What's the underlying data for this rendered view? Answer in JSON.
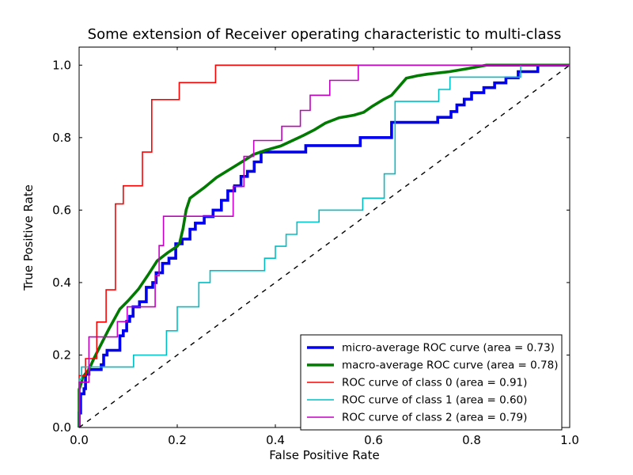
{
  "figure": {
    "title": "Some extension of Receiver operating characteristic to multi-class",
    "xlabel": "False Positive Rate",
    "ylabel": "True Positive Rate",
    "background": "#ffffff",
    "frame_color": "#000000"
  },
  "chart_data": {
    "type": "line",
    "title": "Some extension of Receiver operating characteristic to multi-class",
    "xlabel": "False Positive Rate",
    "ylabel": "True Positive Rate",
    "xlim": [
      0.0,
      1.0
    ],
    "ylim": [
      0.0,
      1.05
    ],
    "xtick_labels": [
      "0.0",
      "0.2",
      "0.4",
      "0.6",
      "0.8",
      "1.0"
    ],
    "xtick_values": [
      0.0,
      0.2,
      0.4,
      0.6,
      0.8,
      1.0
    ],
    "ytick_labels": [
      "0.0",
      "0.2",
      "0.4",
      "0.6",
      "0.8",
      "1.0"
    ],
    "ytick_values": [
      0.0,
      0.2,
      0.4,
      0.6,
      0.8,
      1.0
    ],
    "grid": false,
    "legend_position": "lower right",
    "series": [
      {
        "name": "micro-average ROC curve (area = 0.73)",
        "auc": 0.73,
        "color": "#0000ee",
        "width": 3.6,
        "style": "solid",
        "in_legend": true,
        "points": [
          [
            0,
            0
          ],
          [
            0,
            0.04
          ],
          [
            0.003,
            0.04
          ],
          [
            0.003,
            0.093
          ],
          [
            0.01,
            0.093
          ],
          [
            0.01,
            0.107
          ],
          [
            0.013,
            0.107
          ],
          [
            0.013,
            0.147
          ],
          [
            0.02,
            0.147
          ],
          [
            0.02,
            0.16
          ],
          [
            0.045,
            0.16
          ],
          [
            0.045,
            0.173
          ],
          [
            0.05,
            0.173
          ],
          [
            0.05,
            0.2
          ],
          [
            0.057,
            0.2
          ],
          [
            0.057,
            0.213
          ],
          [
            0.083,
            0.213
          ],
          [
            0.083,
            0.253
          ],
          [
            0.09,
            0.253
          ],
          [
            0.09,
            0.267
          ],
          [
            0.097,
            0.267
          ],
          [
            0.097,
            0.293
          ],
          [
            0.103,
            0.293
          ],
          [
            0.103,
            0.307
          ],
          [
            0.11,
            0.307
          ],
          [
            0.11,
            0.333
          ],
          [
            0.123,
            0.333
          ],
          [
            0.123,
            0.347
          ],
          [
            0.137,
            0.347
          ],
          [
            0.137,
            0.387
          ],
          [
            0.15,
            0.387
          ],
          [
            0.15,
            0.4
          ],
          [
            0.157,
            0.4
          ],
          [
            0.157,
            0.427
          ],
          [
            0.17,
            0.427
          ],
          [
            0.17,
            0.453
          ],
          [
            0.183,
            0.453
          ],
          [
            0.183,
            0.467
          ],
          [
            0.197,
            0.467
          ],
          [
            0.197,
            0.507
          ],
          [
            0.21,
            0.507
          ],
          [
            0.21,
            0.52
          ],
          [
            0.226,
            0.52
          ],
          [
            0.226,
            0.547
          ],
          [
            0.237,
            0.547
          ],
          [
            0.237,
            0.564
          ],
          [
            0.255,
            0.564
          ],
          [
            0.255,
            0.582
          ],
          [
            0.273,
            0.582
          ],
          [
            0.273,
            0.6
          ],
          [
            0.29,
            0.6
          ],
          [
            0.29,
            0.627
          ],
          [
            0.303,
            0.627
          ],
          [
            0.303,
            0.653
          ],
          [
            0.317,
            0.653
          ],
          [
            0.317,
            0.667
          ],
          [
            0.33,
            0.667
          ],
          [
            0.33,
            0.693
          ],
          [
            0.343,
            0.693
          ],
          [
            0.343,
            0.707
          ],
          [
            0.357,
            0.707
          ],
          [
            0.357,
            0.733
          ],
          [
            0.371,
            0.733
          ],
          [
            0.371,
            0.76
          ],
          [
            0.462,
            0.76
          ],
          [
            0.462,
            0.778
          ],
          [
            0.573,
            0.778
          ],
          [
            0.573,
            0.8
          ],
          [
            0.637,
            0.8
          ],
          [
            0.637,
            0.842
          ],
          [
            0.731,
            0.842
          ],
          [
            0.731,
            0.856
          ],
          [
            0.758,
            0.856
          ],
          [
            0.758,
            0.872
          ],
          [
            0.77,
            0.872
          ],
          [
            0.77,
            0.89
          ],
          [
            0.785,
            0.89
          ],
          [
            0.785,
            0.906
          ],
          [
            0.8,
            0.906
          ],
          [
            0.8,
            0.924
          ],
          [
            0.825,
            0.924
          ],
          [
            0.825,
            0.938
          ],
          [
            0.847,
            0.938
          ],
          [
            0.847,
            0.951
          ],
          [
            0.87,
            0.951
          ],
          [
            0.87,
            0.965
          ],
          [
            0.895,
            0.965
          ],
          [
            0.895,
            0.982
          ],
          [
            0.935,
            0.982
          ],
          [
            0.935,
            1.0
          ],
          [
            1,
            1
          ]
        ]
      },
      {
        "name": "macro-average ROC curve (area = 0.78)",
        "auc": 0.78,
        "color": "#007a00",
        "width": 3.6,
        "style": "solid",
        "in_legend": true,
        "points": [
          [
            0,
            0
          ],
          [
            0,
            0.105
          ],
          [
            0.005,
            0.125
          ],
          [
            0.007,
            0.138
          ],
          [
            0.02,
            0.16
          ],
          [
            0.03,
            0.19
          ],
          [
            0.046,
            0.233
          ],
          [
            0.06,
            0.27
          ],
          [
            0.083,
            0.327
          ],
          [
            0.1,
            0.35
          ],
          [
            0.121,
            0.382
          ],
          [
            0.14,
            0.42
          ],
          [
            0.159,
            0.46
          ],
          [
            0.18,
            0.482
          ],
          [
            0.2,
            0.5
          ],
          [
            0.205,
            0.51
          ],
          [
            0.212,
            0.55
          ],
          [
            0.218,
            0.6
          ],
          [
            0.226,
            0.633
          ],
          [
            0.255,
            0.662
          ],
          [
            0.28,
            0.69
          ],
          [
            0.315,
            0.719
          ],
          [
            0.34,
            0.74
          ],
          [
            0.355,
            0.753
          ],
          [
            0.38,
            0.765
          ],
          [
            0.411,
            0.777
          ],
          [
            0.457,
            0.806
          ],
          [
            0.48,
            0.822
          ],
          [
            0.502,
            0.84
          ],
          [
            0.53,
            0.855
          ],
          [
            0.56,
            0.862
          ],
          [
            0.58,
            0.87
          ],
          [
            0.597,
            0.886
          ],
          [
            0.62,
            0.905
          ],
          [
            0.637,
            0.917
          ],
          [
            0.667,
            0.964
          ],
          [
            0.69,
            0.971
          ],
          [
            0.71,
            0.975
          ],
          [
            0.755,
            0.982
          ],
          [
            0.79,
            0.99
          ],
          [
            0.83,
            1.0
          ],
          [
            1,
            1
          ]
        ]
      },
      {
        "name": "ROC curve of class 0 (area = 0.91)",
        "auc": 0.91,
        "color": "#ff0000",
        "width": 1.6,
        "style": "solid",
        "in_legend": true,
        "points": [
          [
            0,
            0
          ],
          [
            0,
            0.143
          ],
          [
            0.013,
            0.143
          ],
          [
            0.013,
            0.19
          ],
          [
            0.036,
            0.19
          ],
          [
            0.036,
            0.291
          ],
          [
            0.055,
            0.291
          ],
          [
            0.055,
            0.38
          ],
          [
            0.074,
            0.38
          ],
          [
            0.074,
            0.617
          ],
          [
            0.09,
            0.617
          ],
          [
            0.09,
            0.667
          ],
          [
            0.129,
            0.667
          ],
          [
            0.129,
            0.76
          ],
          [
            0.148,
            0.76
          ],
          [
            0.148,
            0.905
          ],
          [
            0.204,
            0.905
          ],
          [
            0.204,
            0.952
          ],
          [
            0.278,
            0.952
          ],
          [
            0.278,
            1.0
          ],
          [
            1,
            1
          ]
        ]
      },
      {
        "name": "ROC curve of class 1 (area = 0.60)",
        "auc": 0.6,
        "color": "#00bfc4",
        "width": 1.6,
        "style": "solid",
        "in_legend": true,
        "points": [
          [
            0,
            0
          ],
          [
            0,
            0.133
          ],
          [
            0.005,
            0.133
          ],
          [
            0.005,
            0.167
          ],
          [
            0.111,
            0.167
          ],
          [
            0.111,
            0.2
          ],
          [
            0.178,
            0.2
          ],
          [
            0.178,
            0.267
          ],
          [
            0.2,
            0.267
          ],
          [
            0.2,
            0.333
          ],
          [
            0.244,
            0.333
          ],
          [
            0.244,
            0.4
          ],
          [
            0.267,
            0.4
          ],
          [
            0.267,
            0.433
          ],
          [
            0.378,
            0.433
          ],
          [
            0.378,
            0.467
          ],
          [
            0.4,
            0.467
          ],
          [
            0.4,
            0.5
          ],
          [
            0.422,
            0.5
          ],
          [
            0.422,
            0.533
          ],
          [
            0.444,
            0.533
          ],
          [
            0.444,
            0.567
          ],
          [
            0.489,
            0.567
          ],
          [
            0.489,
            0.6
          ],
          [
            0.578,
            0.6
          ],
          [
            0.578,
            0.633
          ],
          [
            0.622,
            0.633
          ],
          [
            0.622,
            0.7
          ],
          [
            0.644,
            0.7
          ],
          [
            0.644,
            0.9
          ],
          [
            0.733,
            0.9
          ],
          [
            0.733,
            0.933
          ],
          [
            0.756,
            0.933
          ],
          [
            0.756,
            0.967
          ],
          [
            0.9,
            0.967
          ],
          [
            0.9,
            1.0
          ],
          [
            1,
            1
          ]
        ]
      },
      {
        "name": "ROC curve of class 2 (area = 0.79)",
        "auc": 0.79,
        "color": "#c400c4",
        "width": 1.6,
        "style": "solid",
        "in_legend": true,
        "points": [
          [
            0,
            0
          ],
          [
            0,
            0.125
          ],
          [
            0.02,
            0.125
          ],
          [
            0.02,
            0.25
          ],
          [
            0.078,
            0.25
          ],
          [
            0.078,
            0.292
          ],
          [
            0.098,
            0.292
          ],
          [
            0.098,
            0.333
          ],
          [
            0.155,
            0.333
          ],
          [
            0.155,
            0.419
          ],
          [
            0.163,
            0.419
          ],
          [
            0.163,
            0.502
          ],
          [
            0.172,
            0.502
          ],
          [
            0.172,
            0.583
          ],
          [
            0.314,
            0.583
          ],
          [
            0.314,
            0.665
          ],
          [
            0.336,
            0.665
          ],
          [
            0.336,
            0.748
          ],
          [
            0.356,
            0.748
          ],
          [
            0.356,
            0.792
          ],
          [
            0.413,
            0.792
          ],
          [
            0.413,
            0.831
          ],
          [
            0.451,
            0.831
          ],
          [
            0.451,
            0.875
          ],
          [
            0.471,
            0.875
          ],
          [
            0.471,
            0.917
          ],
          [
            0.511,
            0.917
          ],
          [
            0.511,
            0.958
          ],
          [
            0.569,
            0.958
          ],
          [
            0.569,
            1.0
          ],
          [
            1,
            1
          ]
        ]
      },
      {
        "name": "chance-diagonal",
        "color": "#000000",
        "width": 1.4,
        "style": "dashed",
        "in_legend": false,
        "points": [
          [
            0,
            0
          ],
          [
            1,
            1
          ]
        ]
      }
    ]
  }
}
